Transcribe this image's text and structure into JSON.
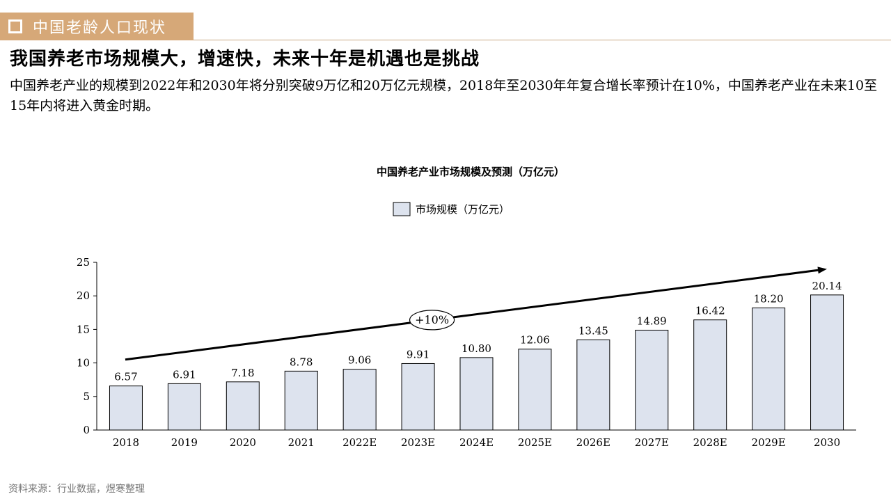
{
  "header": {
    "section_title": "中国老龄人口现状",
    "headline": "我国养老市场规模大，增速快，未来十年是机遇也是挑战",
    "intro": "中国养老产业的规模到2022年和2030年将分别突破9万亿和20万亿元规模，2018年至2030年年复合增长率预计在10%，中国养老产业在未来10至15年内将进入黄金时期。"
  },
  "colors": {
    "tab": "#d6a878",
    "bar_fill": "#dde3ee",
    "bar_stroke": "#000000"
  },
  "chart_data": {
    "type": "bar",
    "title": "中国养老产业市场规模及预测（万亿元）",
    "legend": "市场规模（万亿元）",
    "legend_position": "top-center",
    "categories": [
      "2018",
      "2019",
      "2020",
      "2021",
      "2022E",
      "2023E",
      "2024E",
      "2025E",
      "2026E",
      "2027E",
      "2028E",
      "2029E",
      "2030"
    ],
    "values": [
      6.57,
      6.91,
      7.18,
      8.78,
      9.06,
      9.91,
      10.8,
      12.06,
      13.45,
      14.89,
      16.42,
      18.2,
      20.14
    ],
    "value_labels": [
      "6.57",
      "6.91",
      "7.18",
      "8.78",
      "9.06",
      "9.91",
      "10.80",
      "12.06",
      "13.45",
      "14.89",
      "16.42",
      "18.20",
      "20.14"
    ],
    "ylim": [
      0,
      25
    ],
    "yticks": [
      0,
      5,
      10,
      15,
      20,
      25
    ],
    "grid": false,
    "annotation": "+10%",
    "trend_arrow": {
      "from_y": 10.5,
      "to_y": 24.0
    }
  },
  "footer": {
    "source": "资料来源：行业数据，煜寒整理"
  }
}
